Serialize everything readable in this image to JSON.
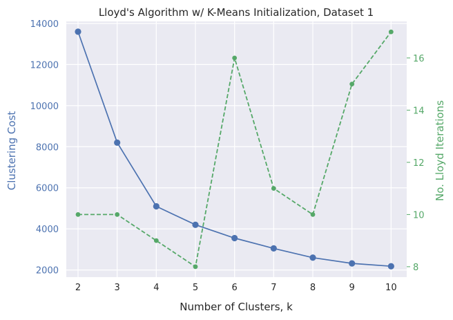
{
  "chart_data": {
    "type": "line",
    "title": "Lloyd's Algorithm w/ K-Means Initialization, Dataset 1",
    "xlabel": "Number of Clusters, k",
    "ylabel": "Clustering Cost",
    "ylabel_right": "No. Lloyd Iterations",
    "x": [
      2,
      3,
      4,
      5,
      6,
      7,
      8,
      9,
      10
    ],
    "xlim": [
      1.7,
      10.4
    ],
    "ylim": [
      1650,
      14100
    ],
    "ylim_right": [
      7.6,
      17.4
    ],
    "xticks": [
      2,
      3,
      4,
      5,
      6,
      7,
      8,
      9,
      10
    ],
    "yticks": [
      2000,
      4000,
      6000,
      8000,
      10000,
      12000,
      14000
    ],
    "yticks_right": [
      8,
      10,
      12,
      14,
      16
    ],
    "grid": true,
    "series": [
      {
        "axis": "left",
        "values": [
          13600,
          8200,
          5100,
          4200,
          3550,
          3050,
          2600,
          2320,
          2180
        ],
        "color": "#4c72b0",
        "style": "solid"
      },
      {
        "axis": "right",
        "values": [
          10,
          10,
          9,
          8,
          16,
          11,
          10,
          15,
          17
        ],
        "color": "#55a868",
        "style": "dashed"
      }
    ],
    "colors": {
      "plot_bg": "#eaeaf2",
      "grid": "#ffffff",
      "left_axis": "#4c72b0",
      "right_axis": "#55a868",
      "text": "#262626"
    }
  }
}
